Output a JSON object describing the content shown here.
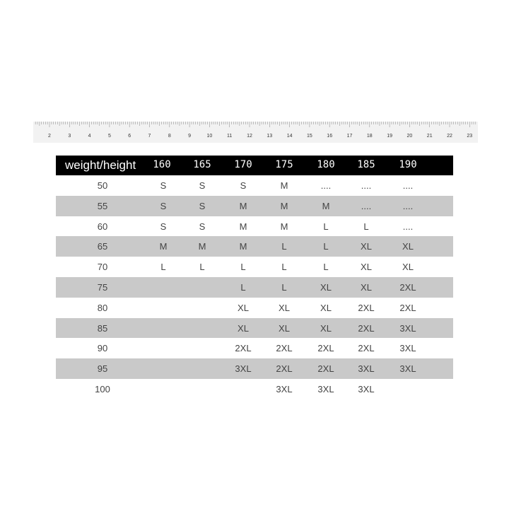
{
  "ruler": {
    "labels": [
      "2",
      "3",
      "4",
      "5",
      "6",
      "7",
      "8",
      "9",
      "10",
      "11",
      "12",
      "13",
      "14",
      "15",
      "16",
      "17",
      "18",
      "19",
      "20",
      "21",
      "22",
      "23"
    ]
  },
  "table": {
    "corner_label": "weight/height",
    "heights": [
      "160",
      "165",
      "170",
      "175",
      "180",
      "185",
      "190"
    ],
    "rows": [
      {
        "weight": "50",
        "sizes": [
          "S",
          "S",
          "S",
          "M",
          "....",
          "....",
          "...."
        ]
      },
      {
        "weight": "55",
        "sizes": [
          "S",
          "S",
          "M",
          "M",
          "M",
          "....",
          "...."
        ]
      },
      {
        "weight": "60",
        "sizes": [
          "S",
          "S",
          "M",
          "M",
          "L",
          "L",
          "...."
        ]
      },
      {
        "weight": "65",
        "sizes": [
          "M",
          "M",
          "M",
          "L",
          "L",
          "XL",
          "XL"
        ]
      },
      {
        "weight": "70",
        "sizes": [
          "L",
          "L",
          "L",
          "L",
          "L",
          "XL",
          "XL"
        ]
      },
      {
        "weight": "75",
        "sizes": [
          "",
          "",
          "L",
          "L",
          "XL",
          "XL",
          "2XL"
        ]
      },
      {
        "weight": "80",
        "sizes": [
          "",
          "",
          "XL",
          "XL",
          "XL",
          "2XL",
          "2XL"
        ]
      },
      {
        "weight": "85",
        "sizes": [
          "",
          "",
          "XL",
          "XL",
          "XL",
          "2XL",
          "3XL"
        ]
      },
      {
        "weight": "90",
        "sizes": [
          "",
          "",
          "2XL",
          "2XL",
          "2XL",
          "2XL",
          "3XL"
        ]
      },
      {
        "weight": "95",
        "sizes": [
          "",
          "",
          "3XL",
          "2XL",
          "2XL",
          "3XL",
          "3XL"
        ]
      },
      {
        "weight": "100",
        "sizes": [
          "",
          "",
          "",
          "3XL",
          "3XL",
          "3XL",
          ""
        ]
      }
    ]
  },
  "colors": {
    "header_bg": "#000000",
    "stripe": "#c9c9c9",
    "ruler_bg": "#f2f2f2"
  }
}
